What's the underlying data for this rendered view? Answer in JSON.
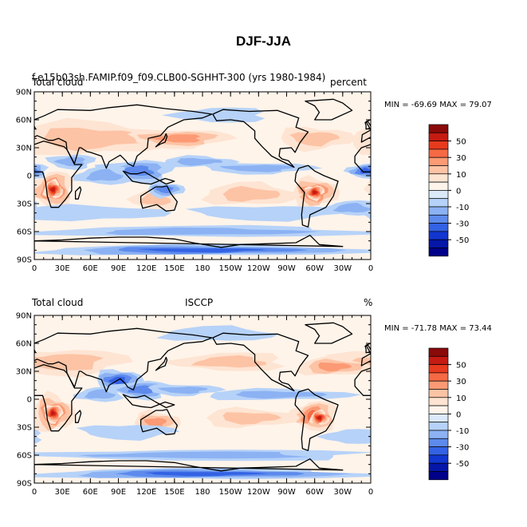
{
  "figure": {
    "title": "DJF-JJA"
  },
  "panels": [
    {
      "left_label": "Total cloud",
      "header_text": "f.e15b03sh.FAMIP.f09_f09.CLB00-SGHHT-300 (yrs 1980-1984)",
      "right_label": "percent",
      "center_label": "",
      "min_max": "MIN = -69.69 MAX =  79.07"
    },
    {
      "left_label": "Total cloud",
      "header_text": "",
      "right_label": "%",
      "center_label": "ISCCP",
      "min_max": "MIN = -71.78 MAX =  73.44"
    }
  ],
  "lat_ticks": [
    "90N",
    "60N",
    "30N",
    "0",
    "30S",
    "60S",
    "90S"
  ],
  "lon_ticks": [
    "0",
    "30E",
    "60E",
    "90E",
    "120E",
    "150E",
    "180",
    "150W",
    "120W",
    "90W",
    "60W",
    "30W",
    "0"
  ],
  "colorbar": {
    "labels": [
      "50",
      "30",
      "10",
      "0",
      "-10",
      "-30",
      "-50"
    ],
    "colors": [
      "#8a0a0a",
      "#c51b12",
      "#e83a1e",
      "#f56a45",
      "#fb9a74",
      "#fdc3a5",
      "#fee4d2",
      "#fff4ea",
      "#dbe9fb",
      "#b6d2f8",
      "#8cb2f3",
      "#5d8aec",
      "#3462e4",
      "#1236d0",
      "#0616a8",
      "#00008a"
    ]
  }
}
